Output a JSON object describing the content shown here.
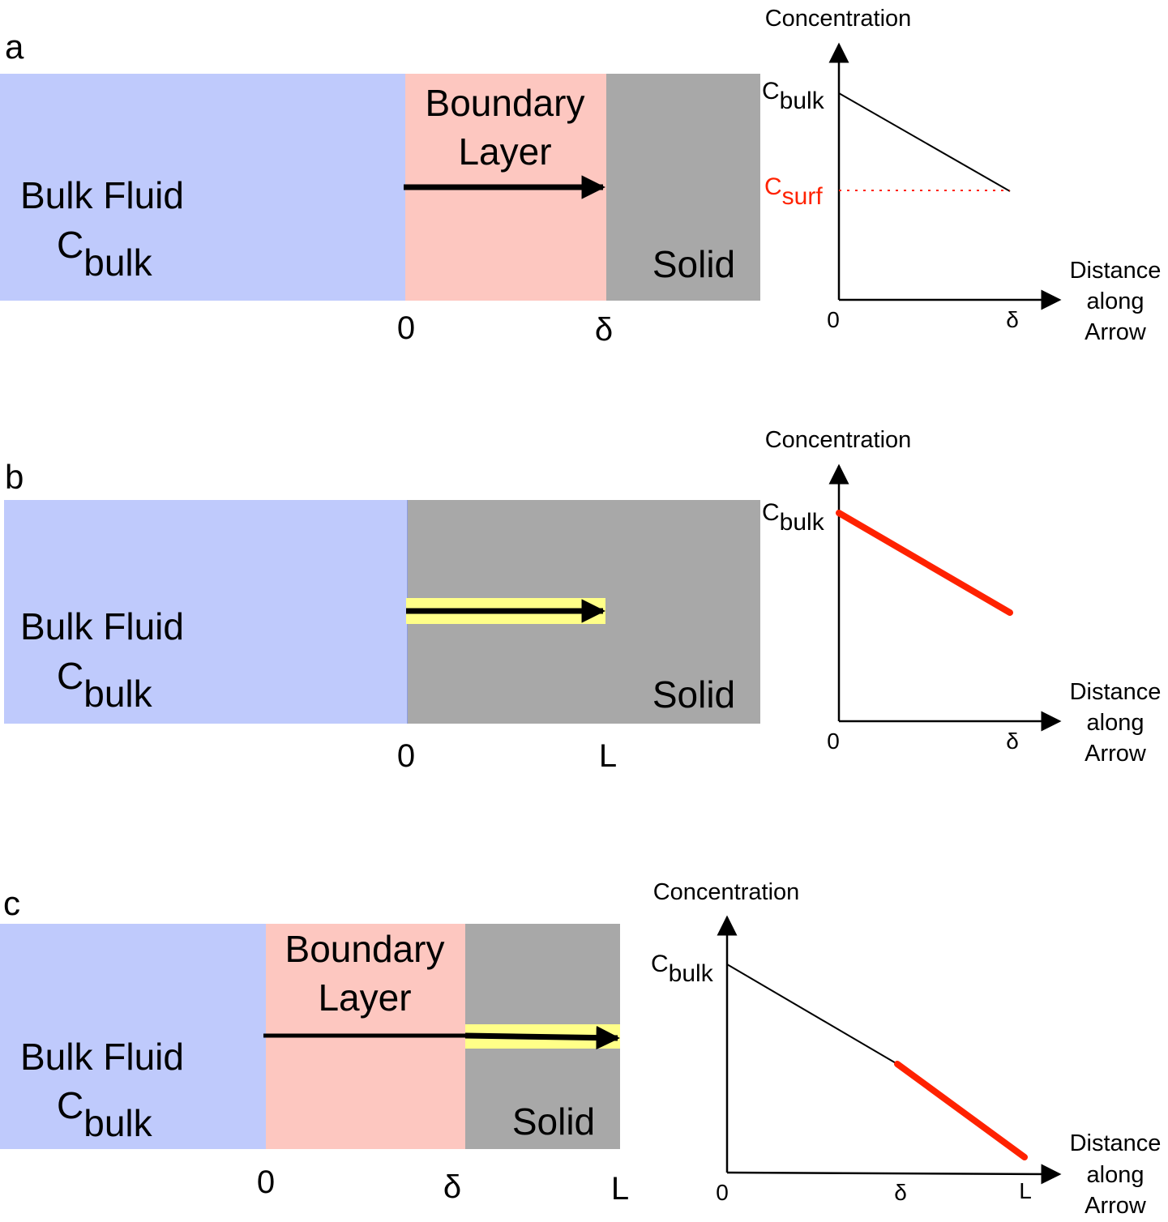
{
  "colors": {
    "bulk_fluid": "#bfcafc",
    "boundary_layer": "#fdc7c0",
    "solid": "#a8a8a8",
    "highlight": "#ffff88",
    "red": "#ff2200",
    "black": "#000000"
  },
  "panels": [
    {
      "label": "a",
      "regions": {
        "bulk": "Bulk Fluid",
        "bulk_conc_main": "C",
        "bulk_conc_sub": "bulk",
        "boundary": [
          "Boundary",
          "Layer"
        ],
        "solid": "Solid"
      },
      "ticks": [
        "0",
        "δ"
      ],
      "graph": {
        "ylabel": "Concentration",
        "xlabel": [
          "Distance",
          "along",
          "Arrow"
        ],
        "y_marks": [
          {
            "main": "C",
            "sub": "bulk",
            "color": "#000000"
          },
          {
            "main": "C",
            "sub": "surf",
            "color": "#ff2200"
          }
        ],
        "x_ticks": [
          "0",
          "δ"
        ]
      }
    },
    {
      "label": "b",
      "regions": {
        "bulk": "Bulk Fluid",
        "bulk_conc_main": "C",
        "bulk_conc_sub": "bulk",
        "solid": "Solid"
      },
      "ticks": [
        "0",
        "L"
      ],
      "graph": {
        "ylabel": "Concentration",
        "xlabel": [
          "Distance",
          "along",
          "Arrow"
        ],
        "y_marks": [
          {
            "main": "C",
            "sub": "bulk",
            "color": "#000000"
          }
        ],
        "x_ticks": [
          "0",
          "δ"
        ]
      }
    },
    {
      "label": "c",
      "regions": {
        "bulk": "Bulk Fluid",
        "bulk_conc_main": "C",
        "bulk_conc_sub": "bulk",
        "boundary": [
          "Boundary",
          "Layer"
        ],
        "solid": "Solid"
      },
      "ticks": [
        "0",
        "δ",
        "L"
      ],
      "graph": {
        "ylabel": "Concentration",
        "xlabel": [
          "Distance",
          "along",
          "Arrow"
        ],
        "y_marks": [
          {
            "main": "C",
            "sub": "bulk",
            "color": "#000000"
          }
        ],
        "x_ticks": [
          "0",
          "δ",
          "L"
        ]
      }
    }
  ]
}
